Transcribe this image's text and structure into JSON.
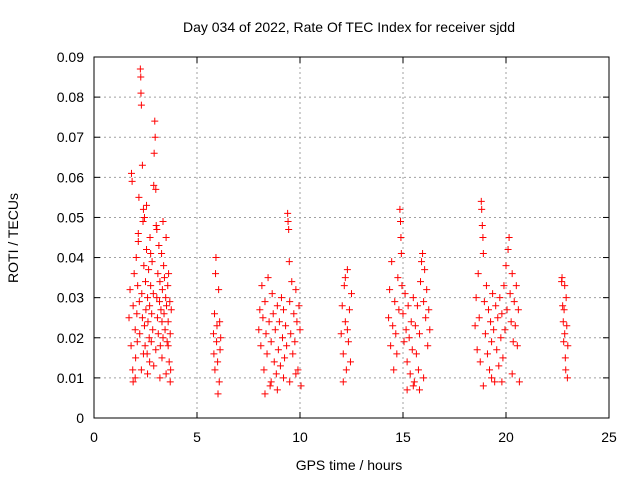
{
  "chart_data": {
    "type": "scatter",
    "title": "Day 034 of 2022, Rate Of TEC Index for receiver sjdd",
    "xlabel": "GPS time / hours",
    "ylabel": "ROTI / TECUs",
    "xlim": [
      0,
      25
    ],
    "ylim": [
      0,
      0.09
    ],
    "x_ticks": [
      0,
      5,
      10,
      15,
      20,
      25
    ],
    "y_ticks": [
      0,
      0.01,
      0.02,
      0.03,
      0.04,
      0.05,
      0.06,
      0.07,
      0.08,
      0.09
    ],
    "x_tick_labels": [
      "0",
      "5",
      "10",
      "15",
      "20",
      "25"
    ],
    "y_tick_labels": [
      "0",
      "0.01",
      "0.02",
      "0.03",
      "0.04",
      "0.05",
      "0.06",
      "0.07",
      "0.08",
      "0.09"
    ],
    "grid": true,
    "marker": "plus",
    "color": "#ff0000",
    "series": [
      {
        "points": [
          [
            1.7,
            0.025
          ],
          [
            1.75,
            0.032
          ],
          [
            1.8,
            0.018
          ],
          [
            1.82,
            0.061
          ],
          [
            1.85,
            0.059
          ],
          [
            1.88,
            0.012
          ],
          [
            1.9,
            0.028
          ],
          [
            1.95,
            0.036
          ],
          [
            2.0,
            0.022
          ],
          [
            2.02,
            0.015
          ],
          [
            2.05,
            0.04
          ],
          [
            2.08,
            0.026
          ],
          [
            2.1,
            0.019
          ],
          [
            2.12,
            0.033
          ],
          [
            2.15,
            0.044
          ],
          [
            2.18,
            0.055
          ],
          [
            2.2,
            0.029
          ],
          [
            2.22,
            0.021
          ],
          [
            2.25,
            0.087
          ],
          [
            2.27,
            0.085
          ],
          [
            2.28,
            0.081
          ],
          [
            2.3,
            0.078
          ],
          [
            2.32,
            0.031
          ],
          [
            2.35,
            0.025
          ],
          [
            2.38,
            0.049
          ],
          [
            2.4,
            0.052
          ],
          [
            2.42,
            0.038
          ],
          [
            2.45,
            0.023
          ],
          [
            2.48,
            0.018
          ],
          [
            2.5,
            0.034
          ],
          [
            2.52,
            0.027
          ],
          [
            2.55,
            0.042
          ],
          [
            2.58,
            0.016
          ],
          [
            2.6,
            0.03
          ],
          [
            2.62,
            0.024
          ],
          [
            2.65,
            0.037
          ],
          [
            2.68,
            0.02
          ],
          [
            2.7,
            0.028
          ],
          [
            2.72,
            0.045
          ],
          [
            2.75,
            0.033
          ],
          [
            2.78,
            0.019
          ],
          [
            2.8,
            0.026
          ],
          [
            2.82,
            0.039
          ],
          [
            2.85,
            0.022
          ],
          [
            2.88,
            0.031
          ],
          [
            2.9,
            0.058
          ],
          [
            2.92,
            0.066
          ],
          [
            2.95,
            0.074
          ],
          [
            2.97,
            0.07
          ],
          [
            3.0,
            0.057
          ],
          [
            3.02,
            0.048
          ],
          [
            3.05,
            0.03
          ],
          [
            3.08,
            0.025
          ],
          [
            3.1,
            0.036
          ],
          [
            3.12,
            0.021
          ],
          [
            3.15,
            0.043
          ],
          [
            3.18,
            0.029
          ],
          [
            3.2,
            0.034
          ],
          [
            3.22,
            0.018
          ],
          [
            3.25,
            0.027
          ],
          [
            3.28,
            0.041
          ],
          [
            3.3,
            0.024
          ],
          [
            3.32,
            0.032
          ],
          [
            3.35,
            0.02
          ],
          [
            3.38,
            0.038
          ],
          [
            3.4,
            0.026
          ],
          [
            3.42,
            0.035
          ],
          [
            3.45,
            0.022
          ],
          [
            3.48,
            0.03
          ],
          [
            3.5,
            0.045
          ],
          [
            3.52,
            0.028
          ],
          [
            3.55,
            0.019
          ],
          [
            3.58,
            0.033
          ],
          [
            3.6,
            0.024
          ],
          [
            3.62,
            0.036
          ],
          [
            3.65,
            0.014
          ],
          [
            3.68,
            0.029
          ],
          [
            3.7,
            0.021
          ],
          [
            3.72,
            0.012
          ],
          [
            3.75,
            0.027
          ],
          [
            2.0,
            0.01
          ],
          [
            2.3,
            0.012
          ],
          [
            2.6,
            0.011
          ],
          [
            2.9,
            0.013
          ],
          [
            3.2,
            0.01
          ],
          [
            3.5,
            0.011
          ],
          [
            3.7,
            0.009
          ],
          [
            1.9,
            0.009
          ],
          [
            2.4,
            0.016
          ],
          [
            2.7,
            0.014
          ],
          [
            3.0,
            0.017
          ],
          [
            3.3,
            0.015
          ],
          [
            3.6,
            0.018
          ],
          [
            2.15,
            0.046
          ],
          [
            2.45,
            0.05
          ],
          [
            2.75,
            0.041
          ],
          [
            3.05,
            0.047
          ],
          [
            2.35,
            0.063
          ],
          [
            2.55,
            0.053
          ],
          [
            3.35,
            0.049
          ],
          [
            5.8,
            0.021
          ],
          [
            5.82,
            0.016
          ],
          [
            5.85,
            0.026
          ],
          [
            5.87,
            0.012
          ],
          [
            5.9,
            0.036
          ],
          [
            5.92,
            0.04
          ],
          [
            5.95,
            0.019
          ],
          [
            5.97,
            0.023
          ],
          [
            6.0,
            0.014
          ],
          [
            6.02,
            0.006
          ],
          [
            6.05,
            0.032
          ],
          [
            6.08,
            0.009
          ],
          [
            6.1,
            0.024
          ],
          [
            6.12,
            0.017
          ],
          [
            6.15,
            0.02
          ],
          [
            8.0,
            0.022
          ],
          [
            8.05,
            0.027
          ],
          [
            8.1,
            0.018
          ],
          [
            8.15,
            0.033
          ],
          [
            8.2,
            0.025
          ],
          [
            8.25,
            0.012
          ],
          [
            8.3,
            0.029
          ],
          [
            8.35,
            0.021
          ],
          [
            8.4,
            0.016
          ],
          [
            8.45,
            0.035
          ],
          [
            8.5,
            0.024
          ],
          [
            8.55,
            0.008
          ],
          [
            8.6,
            0.019
          ],
          [
            8.65,
            0.031
          ],
          [
            8.7,
            0.026
          ],
          [
            8.75,
            0.014
          ],
          [
            8.8,
            0.022
          ],
          [
            8.85,
            0.011
          ],
          [
            8.9,
            0.028
          ],
          [
            8.95,
            0.017
          ],
          [
            9.0,
            0.024
          ],
          [
            9.05,
            0.013
          ],
          [
            9.1,
            0.03
          ],
          [
            9.15,
            0.02
          ],
          [
            9.2,
            0.027
          ],
          [
            9.25,
            0.015
          ],
          [
            9.3,
            0.023
          ],
          [
            9.35,
            0.018
          ],
          [
            9.4,
            0.051
          ],
          [
            9.42,
            0.049
          ],
          [
            9.45,
            0.047
          ],
          [
            9.48,
            0.039
          ],
          [
            9.5,
            0.029
          ],
          [
            9.55,
            0.021
          ],
          [
            9.6,
            0.034
          ],
          [
            9.65,
            0.016
          ],
          [
            9.7,
            0.026
          ],
          [
            9.75,
            0.019
          ],
          [
            9.8,
            0.032
          ],
          [
            9.85,
            0.024
          ],
          [
            9.9,
            0.012
          ],
          [
            9.95,
            0.028
          ],
          [
            10.0,
            0.022
          ],
          [
            10.05,
            0.008
          ],
          [
            8.3,
            0.006
          ],
          [
            8.6,
            0.009
          ],
          [
            8.9,
            0.007
          ],
          [
            9.2,
            0.01
          ],
          [
            9.5,
            0.009
          ],
          [
            9.8,
            0.011
          ],
          [
            12.0,
            0.021
          ],
          [
            12.05,
            0.028
          ],
          [
            12.1,
            0.016
          ],
          [
            12.15,
            0.033
          ],
          [
            12.2,
            0.024
          ],
          [
            12.25,
            0.012
          ],
          [
            12.3,
            0.037
          ],
          [
            12.35,
            0.019
          ],
          [
            12.4,
            0.027
          ],
          [
            12.45,
            0.014
          ],
          [
            12.5,
            0.031
          ],
          [
            12.2,
            0.035
          ],
          [
            12.3,
            0.022
          ],
          [
            12.1,
            0.009
          ],
          [
            14.3,
            0.025
          ],
          [
            14.35,
            0.032
          ],
          [
            14.4,
            0.018
          ],
          [
            14.45,
            0.039
          ],
          [
            14.5,
            0.023
          ],
          [
            14.55,
            0.012
          ],
          [
            14.6,
            0.029
          ],
          [
            14.65,
            0.021
          ],
          [
            14.7,
            0.016
          ],
          [
            14.75,
            0.035
          ],
          [
            14.8,
            0.027
          ],
          [
            14.85,
            0.052
          ],
          [
            14.88,
            0.049
          ],
          [
            14.9,
            0.045
          ],
          [
            14.92,
            0.041
          ],
          [
            14.95,
            0.033
          ],
          [
            15.0,
            0.026
          ],
          [
            15.05,
            0.019
          ],
          [
            15.1,
            0.031
          ],
          [
            15.15,
            0.022
          ],
          [
            15.2,
            0.014
          ],
          [
            15.25,
            0.028
          ],
          [
            15.3,
            0.02
          ],
          [
            15.35,
            0.011
          ],
          [
            15.4,
            0.024
          ],
          [
            15.45,
            0.017
          ],
          [
            15.5,
            0.03
          ],
          [
            15.55,
            0.009
          ],
          [
            15.6,
            0.023
          ],
          [
            15.65,
            0.016
          ],
          [
            15.7,
            0.028
          ],
          [
            15.75,
            0.012
          ],
          [
            15.8,
            0.021
          ],
          [
            15.85,
            0.034
          ],
          [
            15.9,
            0.039
          ],
          [
            15.95,
            0.041
          ],
          [
            16.0,
            0.029
          ],
          [
            16.05,
            0.037
          ],
          [
            16.1,
            0.025
          ],
          [
            16.15,
            0.032
          ],
          [
            16.2,
            0.018
          ],
          [
            16.25,
            0.027
          ],
          [
            16.3,
            0.022
          ],
          [
            15.2,
            0.007
          ],
          [
            15.5,
            0.008
          ],
          [
            15.8,
            0.007
          ],
          [
            16.0,
            0.01
          ],
          [
            18.5,
            0.023
          ],
          [
            18.55,
            0.03
          ],
          [
            18.6,
            0.017
          ],
          [
            18.65,
            0.036
          ],
          [
            18.7,
            0.025
          ],
          [
            18.75,
            0.014
          ],
          [
            18.8,
            0.054
          ],
          [
            18.82,
            0.052
          ],
          [
            18.85,
            0.048
          ],
          [
            18.88,
            0.045
          ],
          [
            18.9,
            0.041
          ],
          [
            18.95,
            0.029
          ],
          [
            19.0,
            0.021
          ],
          [
            19.05,
            0.033
          ],
          [
            19.1,
            0.016
          ],
          [
            19.15,
            0.027
          ],
          [
            19.2,
            0.012
          ],
          [
            19.25,
            0.024
          ],
          [
            19.3,
            0.019
          ],
          [
            19.35,
            0.031
          ],
          [
            19.4,
            0.022
          ],
          [
            19.45,
            0.009
          ],
          [
            19.5,
            0.028
          ],
          [
            19.55,
            0.017
          ],
          [
            19.6,
            0.025
          ],
          [
            19.65,
            0.013
          ],
          [
            19.7,
            0.03
          ],
          [
            19.75,
            0.02
          ],
          [
            19.8,
            0.026
          ],
          [
            19.85,
            0.015
          ],
          [
            19.9,
            0.033
          ],
          [
            19.95,
            0.022
          ],
          [
            20.0,
            0.038
          ],
          [
            20.05,
            0.027
          ],
          [
            20.1,
            0.042
          ],
          [
            20.15,
            0.045
          ],
          [
            20.2,
            0.031
          ],
          [
            20.25,
            0.024
          ],
          [
            20.3,
            0.036
          ],
          [
            20.35,
            0.019
          ],
          [
            20.4,
            0.029
          ],
          [
            20.45,
            0.023
          ],
          [
            20.5,
            0.033
          ],
          [
            20.55,
            0.018
          ],
          [
            20.6,
            0.027
          ],
          [
            20.65,
            0.009
          ],
          [
            18.9,
            0.008
          ],
          [
            19.3,
            0.01
          ],
          [
            19.8,
            0.009
          ],
          [
            20.3,
            0.011
          ],
          [
            22.7,
            0.034
          ],
          [
            22.72,
            0.035
          ],
          [
            22.75,
            0.028
          ],
          [
            22.78,
            0.024
          ],
          [
            22.8,
            0.019
          ],
          [
            22.82,
            0.027
          ],
          [
            22.85,
            0.021
          ],
          [
            22.88,
            0.015
          ],
          [
            22.9,
            0.012
          ],
          [
            22.92,
            0.03
          ],
          [
            22.95,
            0.023
          ],
          [
            22.98,
            0.01
          ],
          [
            23.0,
            0.018
          ],
          [
            22.85,
            0.033
          ]
        ]
      }
    ]
  }
}
